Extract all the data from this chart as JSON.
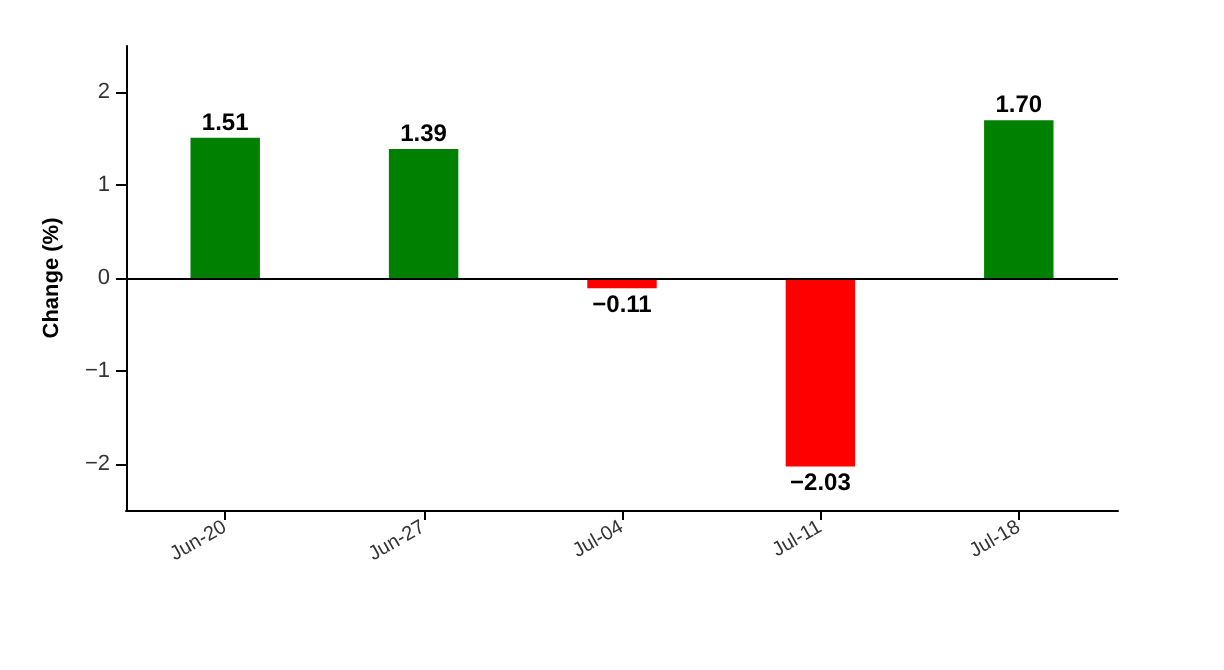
{
  "chart_data": {
    "type": "bar",
    "ylabel": "Change (%)",
    "categories": [
      "Jun-20",
      "Jun-27",
      "Jul-04",
      "Jul-11",
      "Jul-18"
    ],
    "values": [
      1.51,
      1.39,
      -0.11,
      -2.03,
      1.7
    ],
    "colors": [
      "#008000",
      "#008000",
      "#ff0000",
      "#ff0000",
      "#008000"
    ],
    "value_labels": [
      "1.51",
      "1.39",
      "−0.11",
      "−2.03",
      "1.70"
    ],
    "ylim": [
      -2.5,
      2.5
    ],
    "yticks": [
      {
        "value": -2,
        "label": "−2"
      },
      {
        "value": -1,
        "label": "−1"
      },
      0,
      1,
      2
    ],
    "ref_lines": [
      {
        "axis": "y",
        "value": 0,
        "color": "#000000"
      }
    ],
    "grid": false
  }
}
